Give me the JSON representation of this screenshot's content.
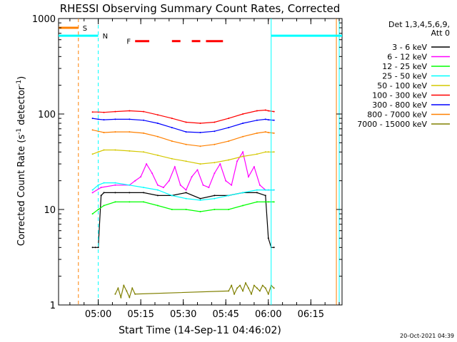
{
  "chart_data": {
    "type": "line",
    "title": "RHESSI Observing Summary Count Rates, Corrected",
    "xlabel": "Start Time (14-Sep-11 04:46:02)",
    "ylabel_main": "Corrected Count Rate (s",
    "ylabel_sup1": "-1",
    "ylabel_mid": " detector",
    "ylabel_sup2": "-1",
    "ylabel_end": ")",
    "yscale": "log",
    "ylim": [
      1,
      1000
    ],
    "xlim_minutes": [
      0,
      100
    ],
    "x_ticks": [
      {
        "label": "05:00",
        "minute": 14
      },
      {
        "label": "05:15",
        "minute": 29
      },
      {
        "label": "05:30",
        "minute": 44
      },
      {
        "label": "05:45",
        "minute": 59
      },
      {
        "label": "06:00",
        "minute": 74
      },
      {
        "label": "06:15",
        "minute": 89
      }
    ],
    "y_ticks": [
      {
        "label": "1",
        "value": 1
      },
      {
        "label": "10",
        "value": 10
      },
      {
        "label": "100",
        "value": 100
      },
      {
        "label": "1000",
        "value": 1000
      }
    ],
    "legend": {
      "placement": "right",
      "header": [
        "Det 1,3,4,5,6,9,",
        "Att 0"
      ],
      "entries": [
        {
          "label": "3 - 6 keV",
          "color": "#000000"
        },
        {
          "label": "6 - 12 keV",
          "color": "#ff00ff"
        },
        {
          "label": "12 - 25 keV",
          "color": "#00ff00"
        },
        {
          "label": "25 - 50 keV",
          "color": "#00ffff"
        },
        {
          "label": "50 - 100 keV",
          "color": "#d4c800"
        },
        {
          "label": "100 - 300 keV",
          "color": "#ff0000"
        },
        {
          "label": "300 - 800 keV",
          "color": "#0000ff"
        },
        {
          "label": "800 - 7000 keV",
          "color": "#ff8000"
        },
        {
          "label": "7000 - 15000 keV",
          "color": "#808000"
        }
      ]
    },
    "series": [
      {
        "name": "3 - 6 keV",
        "color": "#000000",
        "x": [
          12,
          13,
          14,
          15,
          16,
          20,
          25,
          30,
          35,
          40,
          45,
          50,
          55,
          60,
          65,
          70,
          73,
          74,
          75,
          76
        ],
        "y": [
          4,
          4,
          4,
          14,
          15,
          15,
          15,
          15,
          14,
          14,
          15,
          13,
          14,
          14,
          15,
          15,
          14,
          5,
          4,
          4
        ]
      },
      {
        "name": "6 - 12 keV",
        "color": "#ff00ff",
        "x": [
          12,
          15,
          20,
          25,
          27,
          29,
          31,
          33,
          35,
          37,
          39,
          41,
          43,
          45,
          47,
          49,
          51,
          53,
          55,
          57,
          59,
          61,
          63,
          65,
          67,
          69,
          71,
          73,
          74,
          76
        ],
        "y": [
          15,
          17,
          18,
          18,
          20,
          22,
          30,
          24,
          18,
          17,
          20,
          28,
          18,
          16,
          22,
          26,
          18,
          17,
          24,
          30,
          20,
          18,
          32,
          40,
          22,
          28,
          18,
          16,
          16,
          16
        ]
      },
      {
        "name": "12 - 25 keV",
        "color": "#00ff00",
        "x": [
          12,
          14,
          16,
          20,
          25,
          30,
          35,
          40,
          45,
          50,
          55,
          60,
          65,
          70,
          73,
          74,
          76
        ],
        "y": [
          9,
          10,
          11,
          12,
          12,
          12,
          11,
          10,
          10,
          9.5,
          10,
          10,
          11,
          12,
          12,
          12,
          12
        ]
      },
      {
        "name": "25 - 50 keV",
        "color": "#00ffff",
        "x": [
          12,
          14,
          16,
          20,
          25,
          30,
          35,
          40,
          45,
          50,
          55,
          60,
          65,
          70,
          73,
          74,
          76
        ],
        "y": [
          16,
          18,
          19,
          19,
          18,
          17,
          16,
          14,
          13,
          12.5,
          13,
          14,
          15,
          16,
          16,
          16,
          16
        ]
      },
      {
        "name": "50 - 100 keV",
        "color": "#d4c800",
        "x": [
          12,
          14,
          16,
          20,
          25,
          30,
          35,
          40,
          45,
          50,
          55,
          60,
          65,
          70,
          73,
          74,
          76
        ],
        "y": [
          38,
          40,
          42,
          42,
          41,
          40,
          37,
          34,
          32,
          30,
          31,
          33,
          36,
          38,
          40,
          40,
          40
        ]
      },
      {
        "name": "100 - 300 keV",
        "color": "#ff0000",
        "x": [
          12,
          14,
          16,
          20,
          25,
          30,
          35,
          40,
          45,
          50,
          55,
          60,
          65,
          70,
          73,
          74,
          76
        ],
        "y": [
          105,
          105,
          104,
          106,
          108,
          106,
          98,
          90,
          82,
          80,
          82,
          90,
          100,
          108,
          110,
          108,
          106
        ]
      },
      {
        "name": "300 - 800 keV",
        "color": "#0000ff",
        "x": [
          12,
          14,
          16,
          20,
          25,
          30,
          35,
          40,
          45,
          50,
          55,
          60,
          65,
          70,
          73,
          74,
          76
        ],
        "y": [
          90,
          88,
          87,
          88,
          88,
          86,
          80,
          72,
          65,
          64,
          66,
          72,
          80,
          86,
          88,
          87,
          86
        ]
      },
      {
        "name": "800 - 7000 keV",
        "color": "#ff8000",
        "x": [
          12,
          14,
          16,
          20,
          25,
          30,
          35,
          40,
          45,
          50,
          55,
          60,
          65,
          70,
          73,
          74,
          76
        ],
        "y": [
          68,
          66,
          64,
          65,
          65,
          63,
          58,
          52,
          48,
          46,
          48,
          52,
          58,
          63,
          65,
          64,
          63
        ]
      },
      {
        "name": "7000 - 15000 keV",
        "color": "#808000",
        "x": [
          20,
          21,
          22,
          23,
          24,
          25,
          26,
          27,
          60,
          61,
          62,
          63,
          64,
          65,
          66,
          67,
          68,
          69,
          70,
          71,
          72,
          73,
          74,
          75,
          76
        ],
        "y": [
          1.3,
          1.5,
          1.2,
          1.6,
          1.4,
          1.2,
          1.5,
          1.3,
          1.4,
          1.6,
          1.3,
          1.5,
          1.6,
          1.4,
          1.7,
          1.5,
          1.3,
          1.6,
          1.5,
          1.4,
          1.6,
          1.5,
          1.3,
          1.6,
          1.5
        ]
      }
    ],
    "flags": [
      {
        "label": "S",
        "color": "#ff8000",
        "x_start": 0,
        "x_end": 7,
        "level": 800
      },
      {
        "label": "N",
        "color": "#00ffff",
        "x_start": 0,
        "x_end": 14,
        "level": 660
      },
      {
        "label": "N",
        "color": "#00ffff",
        "x_start": 75,
        "x_end": 100,
        "level": 660
      },
      {
        "label": "F",
        "color": "#ff0000",
        "segments": [
          [
            27,
            32
          ],
          [
            40,
            43
          ],
          [
            47,
            50
          ],
          [
            52,
            58
          ]
        ],
        "level": 580
      }
    ],
    "vertical_lines": [
      {
        "x": 7,
        "color": "#ff8000",
        "style": "dashed"
      },
      {
        "x": 14,
        "color": "#00ffff",
        "style": "dashed"
      },
      {
        "x": 75,
        "color": "#00ffff",
        "style": "solid"
      },
      {
        "x": 98,
        "color": "#ff8000",
        "style": "solid"
      },
      {
        "x": 99,
        "color": "#00ffff",
        "style": "solid"
      }
    ],
    "grid": false
  },
  "footer_timestamp": "20-Oct-2021 04:39"
}
